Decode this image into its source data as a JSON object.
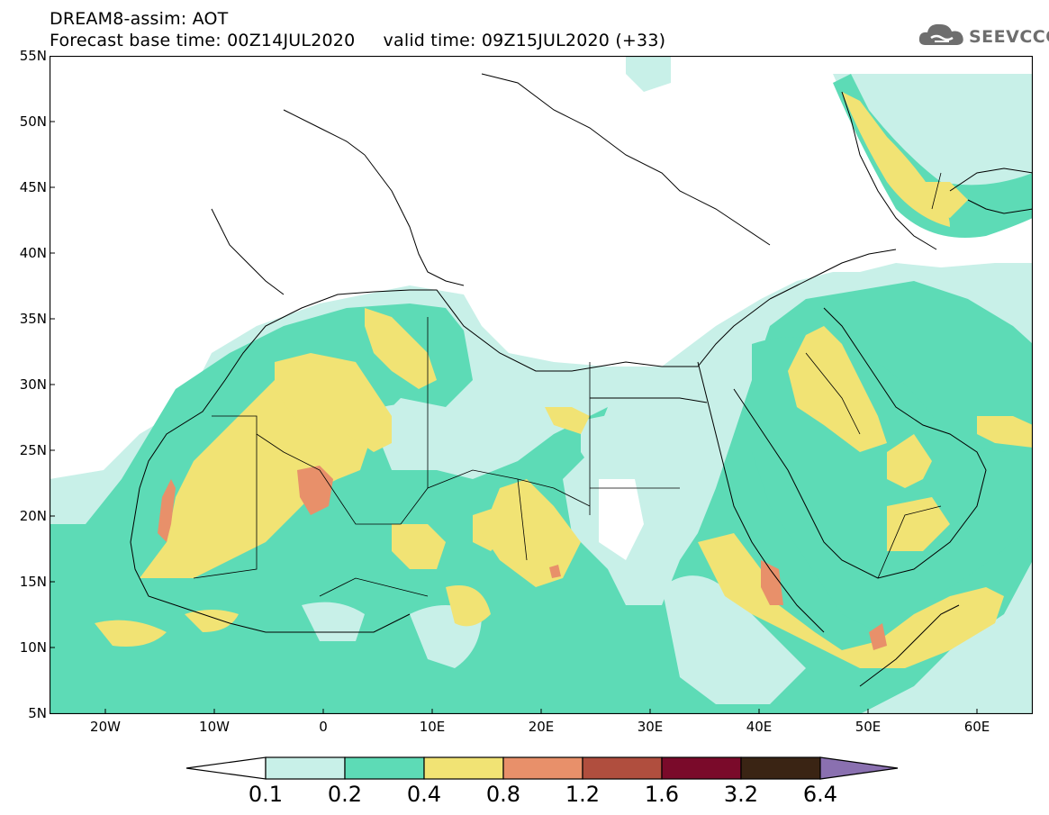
{
  "header": {
    "title_line1": "DREAM8-assim: AOT",
    "title_line2": "Forecast base time: 00Z14JUL2020     valid time: 09Z15JUL2020 (+33)",
    "logo_text": "SEEVCCC"
  },
  "map": {
    "variable": "AOT",
    "lat_labels": [
      "55N",
      "50N",
      "45N",
      "40N",
      "35N",
      "30N",
      "25N",
      "20N",
      "15N",
      "10N",
      "5N"
    ],
    "lon_labels": [
      "20W",
      "10W",
      "0",
      "10E",
      "20E",
      "30E",
      "40E",
      "50E",
      "60E"
    ],
    "colors": {
      "c01_02": "#c8f0e8",
      "c02_04": "#5ddbb6",
      "c04_08": "#f1e374",
      "c08_12": "#e8906a",
      "c12_16": "#b04e3e",
      "c16_32": "#7a0a2a",
      "c32_64": "#3a2414",
      "c64_plus": "#8a70b0",
      "coastline": "#000000"
    }
  },
  "legend": {
    "levels": [
      "0.1",
      "0.2",
      "0.4",
      "0.8",
      "1.2",
      "1.6",
      "3.2",
      "6.4"
    ],
    "colors": [
      "#ffffff",
      "#c8f0e8",
      "#5ddbb6",
      "#f1e374",
      "#e8906a",
      "#b04e3e",
      "#7a0a2a",
      "#3a2414",
      "#8a70b0"
    ]
  }
}
